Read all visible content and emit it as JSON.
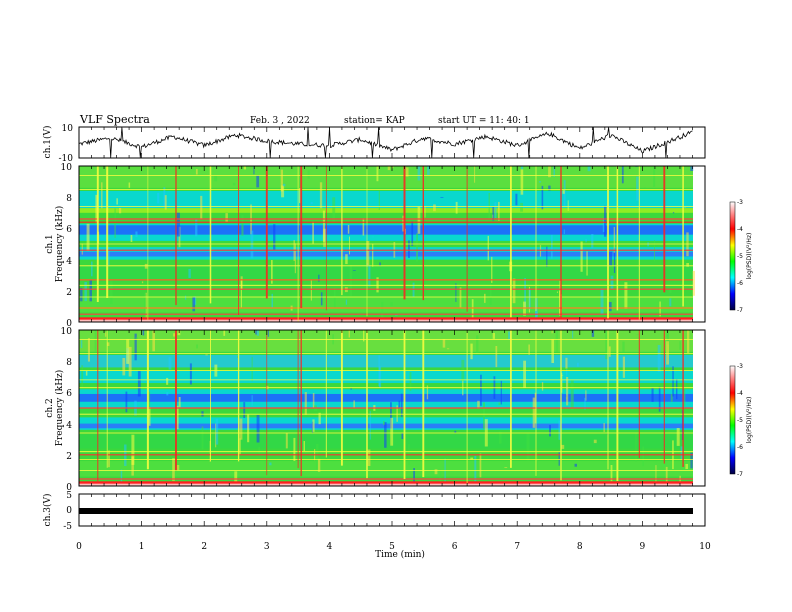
{
  "header": {
    "title": "VLF Spectra",
    "date": "Feb. 3 , 2022",
    "station": "station= KAP",
    "start": "start UT = 11: 40: 1"
  },
  "chart_data": [
    {
      "type": "line",
      "panel": "ch1_waveform",
      "ylabel": "ch.1(V)",
      "ylim": [
        -10,
        10
      ],
      "y_ticks": [
        "10",
        "-10"
      ],
      "xlim": [
        0,
        10
      ],
      "x": [
        0,
        0.5,
        1.0,
        1.5,
        2.0,
        2.5,
        3.0,
        3.5,
        4.0,
        4.5,
        5.0,
        5.5,
        6.0,
        6.5,
        7.0,
        7.5,
        8.0,
        8.5,
        9.0,
        9.5,
        9.8
      ],
      "values": [
        -1,
        3,
        -3,
        4,
        -2,
        5,
        1,
        -1,
        -2,
        2,
        -5,
        3,
        -1,
        4,
        -2,
        6,
        -4,
        5,
        -6,
        2,
        7
      ]
    },
    {
      "type": "heatmap",
      "panel": "ch1_spectrogram",
      "ylabel": "ch.1 Frequency (kHz)",
      "ylim": [
        0,
        10
      ],
      "y_ticks": [
        "10",
        "8",
        "6",
        "4",
        "2",
        "0"
      ],
      "xlim": [
        0,
        10
      ],
      "colorbar": {
        "label": "log(PSD)(V²/Hz)",
        "range": [
          -7,
          -3
        ],
        "ticks": [
          "-3",
          "-4",
          "-5",
          "-6",
          "-7"
        ]
      }
    },
    {
      "type": "heatmap",
      "panel": "ch2_spectrogram",
      "ylabel": "ch.2 Frequency (kHz)",
      "ylim": [
        0,
        10
      ],
      "y_ticks": [
        "10",
        "8",
        "6",
        "4",
        "2",
        "0"
      ],
      "xlim": [
        0,
        10
      ],
      "colorbar": {
        "label": "log(PSD)(V²/Hz)",
        "range": [
          -7,
          -3
        ],
        "ticks": [
          "-3",
          "-4",
          "-5",
          "-6",
          "-7"
        ]
      }
    },
    {
      "type": "line",
      "panel": "ch3_waveform",
      "ylabel": "ch.3(V)",
      "ylim": [
        -5,
        5
      ],
      "y_ticks": [
        "5",
        "0",
        "-5"
      ],
      "xlim": [
        0,
        9.8
      ],
      "values_constant": 0
    }
  ],
  "x_axis": {
    "label": "Time (min)",
    "ticks": [
      "0",
      "1",
      "2",
      "3",
      "4",
      "5",
      "6",
      "7",
      "8",
      "9",
      "10"
    ]
  },
  "colors": {
    "red": "#ff2020",
    "yellow": "#ffff40",
    "green": "#40e040",
    "cyan": "#00e8e8",
    "blue": "#1040ff",
    "dark": "#000080"
  }
}
